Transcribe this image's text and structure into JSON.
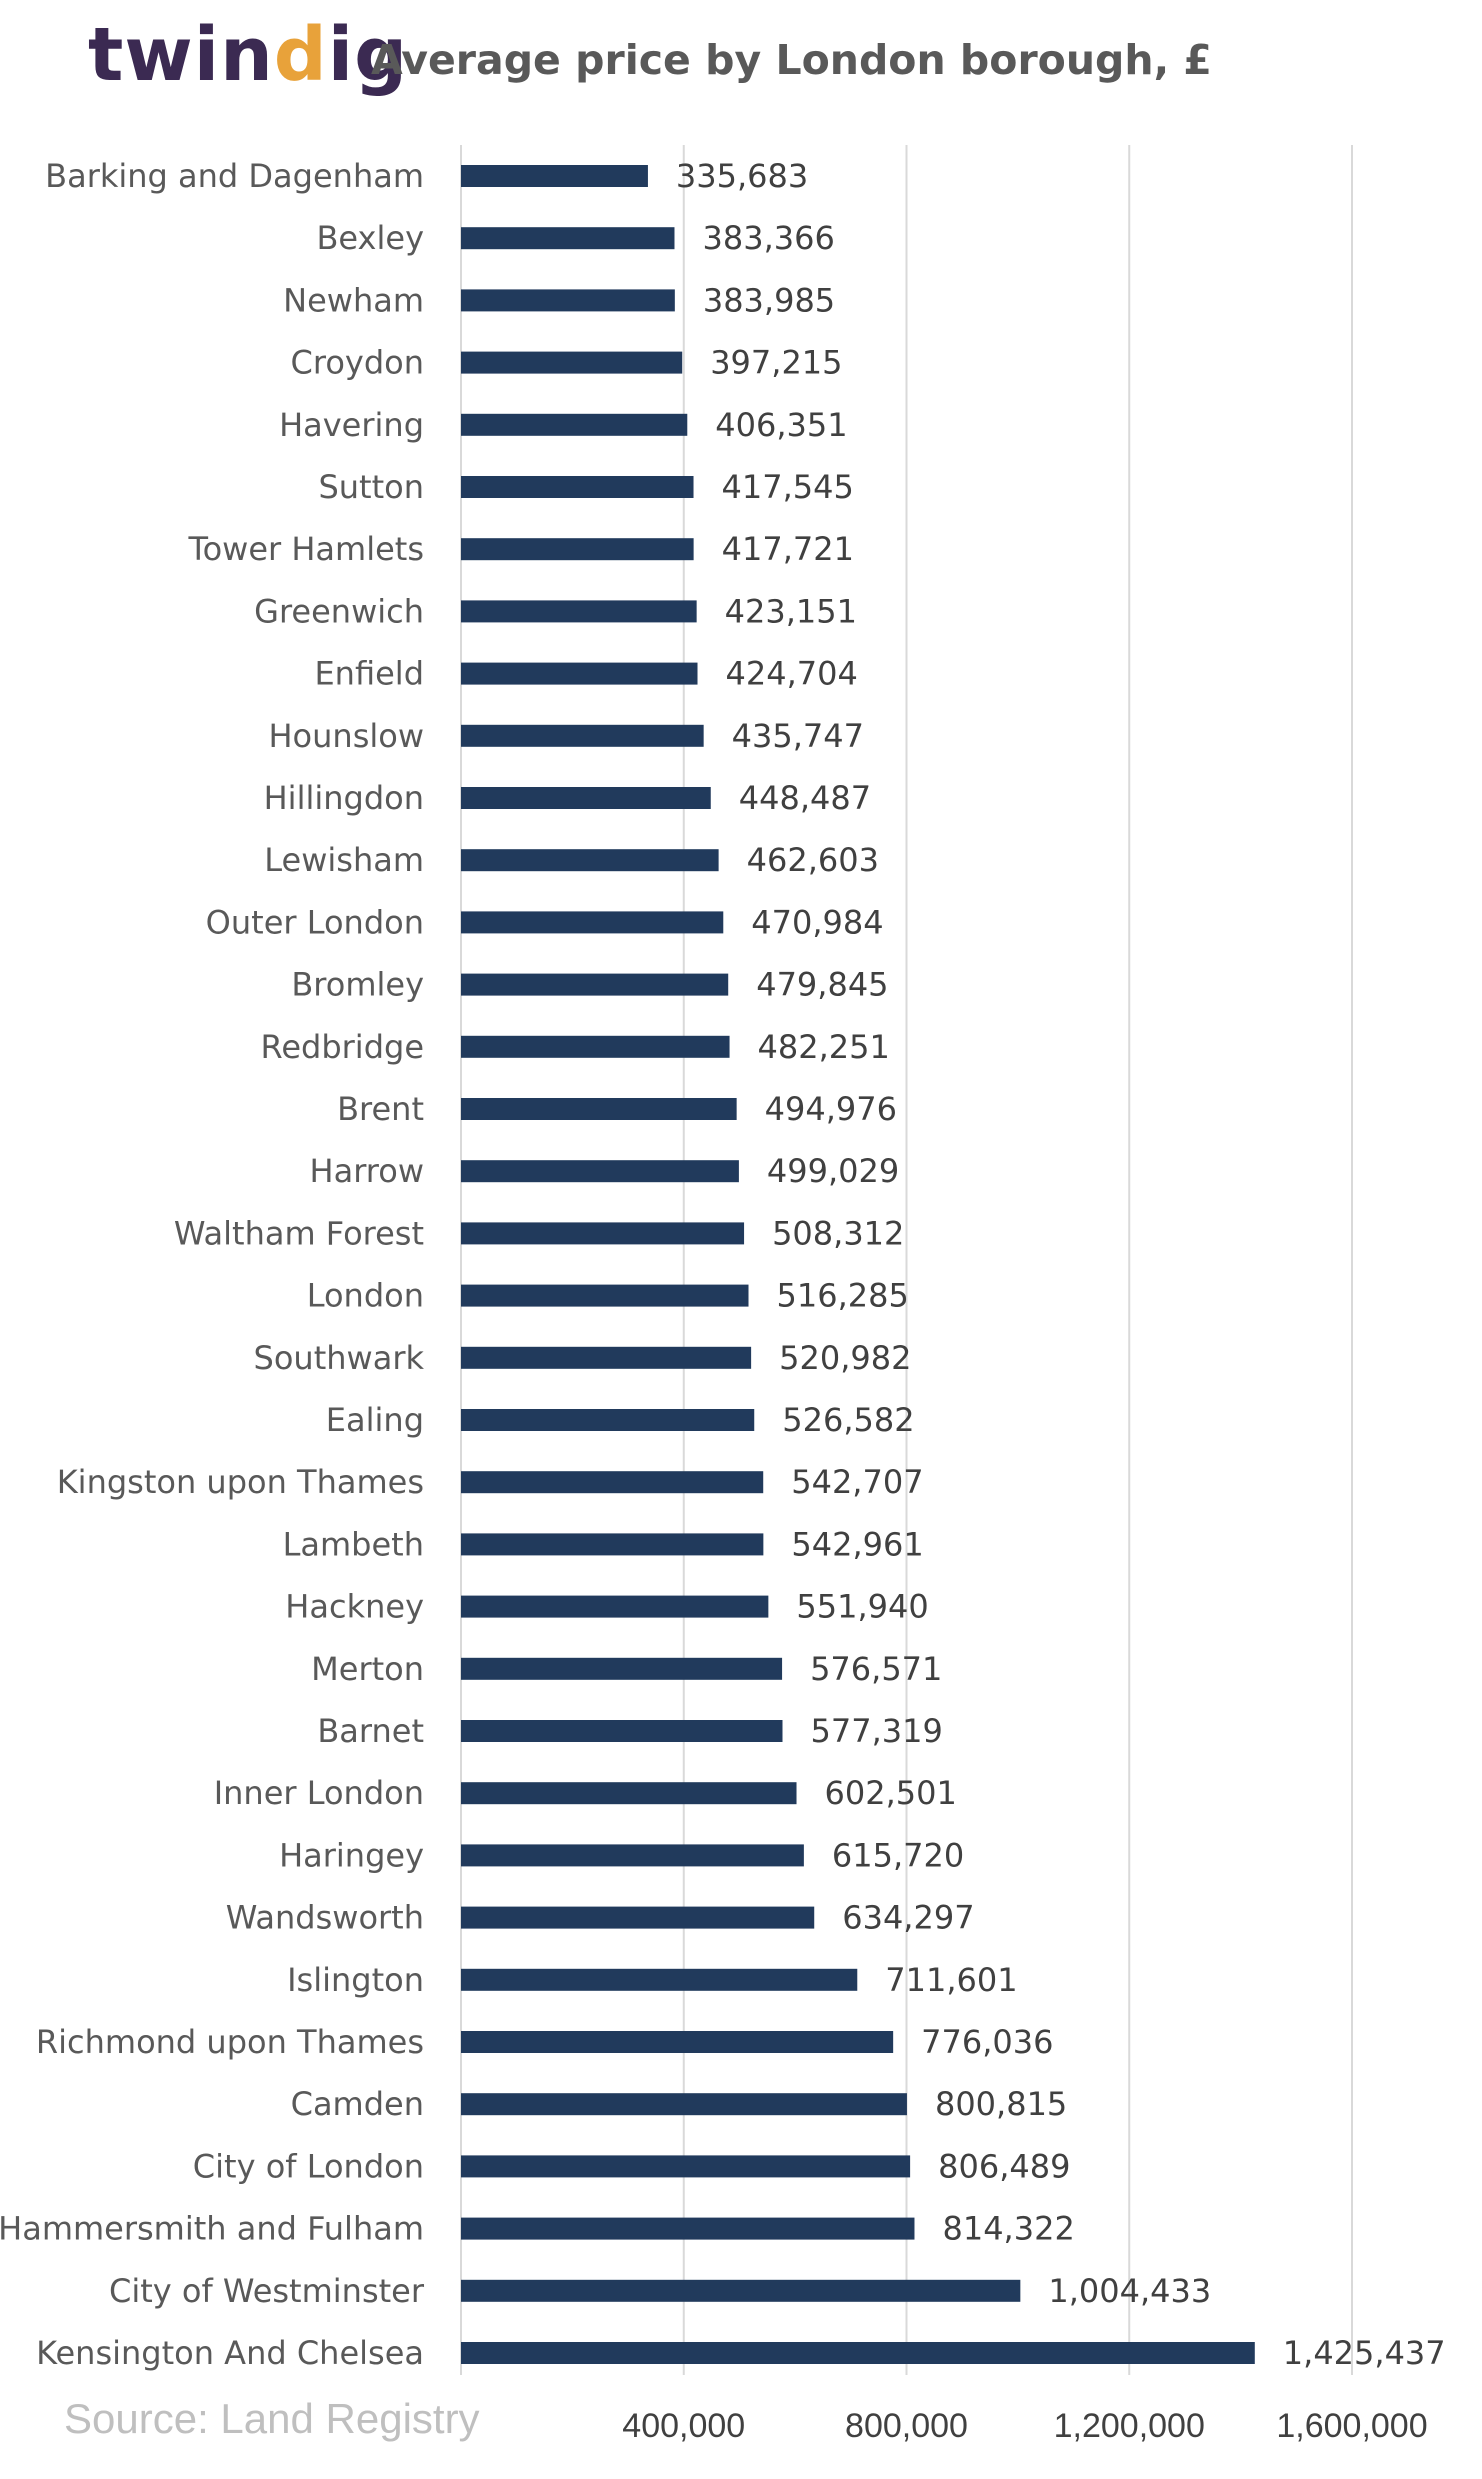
{
  "brand": {
    "logo_text_a": "twin",
    "logo_text_b": "d",
    "logo_text_c": "ig"
  },
  "colors": {
    "bar": "#213a5c",
    "grid": "#d9d9d9",
    "brand": "#3b2a52",
    "accent": "#e8a23a"
  },
  "source": "Source: Land Registry",
  "chart_data": {
    "type": "bar",
    "orientation": "horizontal",
    "title": "Average price by London borough, £",
    "xlim": [
      0,
      1600000
    ],
    "xticks": [
      400000,
      800000,
      1200000,
      1600000
    ],
    "xtick_labels": [
      "400,000",
      "800,000",
      "1,200,000",
      "1,600,000"
    ],
    "grid": true,
    "categories": [
      "Barking and Dagenham",
      "Bexley",
      "Newham",
      "Croydon",
      "Havering",
      "Sutton",
      "Tower Hamlets",
      "Greenwich",
      "Enfield",
      "Hounslow",
      "Hillingdon",
      "Lewisham",
      "Outer London",
      "Bromley",
      "Redbridge",
      "Brent",
      "Harrow",
      "Waltham Forest",
      "London",
      "Southwark",
      "Ealing",
      "Kingston upon Thames",
      "Lambeth",
      "Hackney",
      "Merton",
      "Barnet",
      "Inner London",
      "Haringey",
      "Wandsworth",
      "Islington",
      "Richmond upon Thames",
      "Camden",
      "City of London",
      "Hammersmith and Fulham",
      "City of Westminster",
      "Kensington And Chelsea"
    ],
    "values": [
      335683,
      383366,
      383985,
      397215,
      406351,
      417545,
      417721,
      423151,
      424704,
      435747,
      448487,
      462603,
      470984,
      479845,
      482251,
      494976,
      499029,
      508312,
      516285,
      520982,
      526582,
      542707,
      542961,
      551940,
      576571,
      577319,
      602501,
      615720,
      634297,
      711601,
      776036,
      800815,
      806489,
      814322,
      1004433,
      1425437
    ],
    "value_labels": [
      "335,683",
      "383,366",
      "383,985",
      "397,215",
      "406,351",
      "417,545",
      "417,721",
      "423,151",
      "424,704",
      "435,747",
      "448,487",
      "462,603",
      "470,984",
      "479,845",
      "482,251",
      "494,976",
      "499,029",
      "508,312",
      "516,285",
      "520,982",
      "526,582",
      "542,707",
      "542,961",
      "551,940",
      "576,571",
      "577,319",
      "602,501",
      "615,720",
      "634,297",
      "711,601",
      "776,036",
      "800,815",
      "806,489",
      "814,322",
      "1,004,433",
      "1,425,437"
    ]
  }
}
